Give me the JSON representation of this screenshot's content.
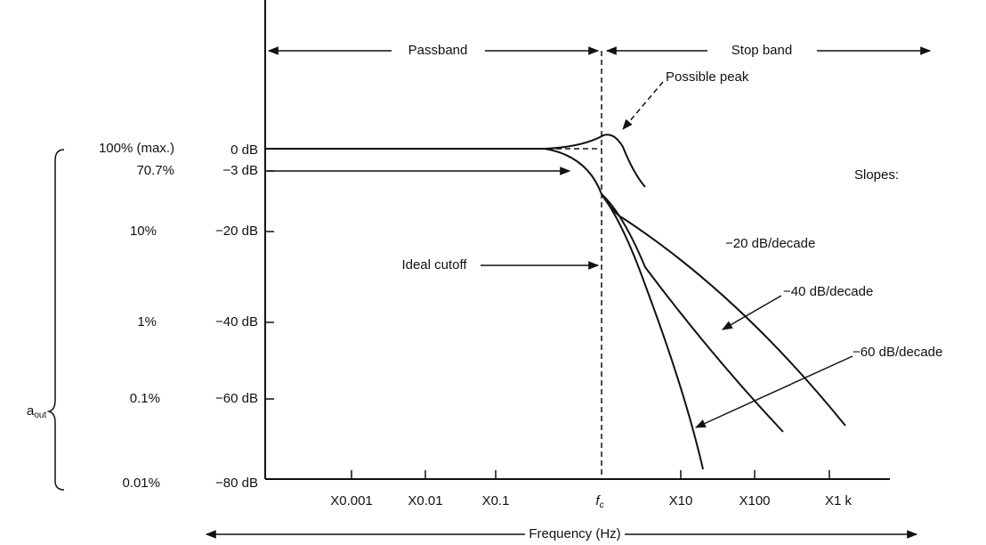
{
  "header": {
    "passband": "Passband",
    "stopband": "Stop band",
    "peak": "Possible peak"
  },
  "left_axis": {
    "symbol": "a",
    "subscript": "out",
    "rows": [
      {
        "percent": "100% (max.)",
        "db": "0 dB"
      },
      {
        "percent": "70.7%",
        "db": "−3 dB"
      },
      {
        "percent": "10%",
        "db": "−20 dB"
      },
      {
        "percent": "1%",
        "db": "−40 dB"
      },
      {
        "percent": "0.1%",
        "db": "−60 dB"
      },
      {
        "percent": "0.01%",
        "db": "−80 dB"
      }
    ]
  },
  "x_axis": {
    "ticks": [
      "X0.001",
      "X0.01",
      "X0.1",
      "f",
      "X10",
      "X100",
      "X1 k"
    ],
    "fc_sub": "c",
    "title": "Frequency (Hz)"
  },
  "annotations": {
    "ideal": "Ideal cutoff",
    "slopes": "Slopes:",
    "s20": "−20 dB/decade",
    "s40": "−40 dB/decade",
    "s60": "−60 dB/decade"
  }
}
